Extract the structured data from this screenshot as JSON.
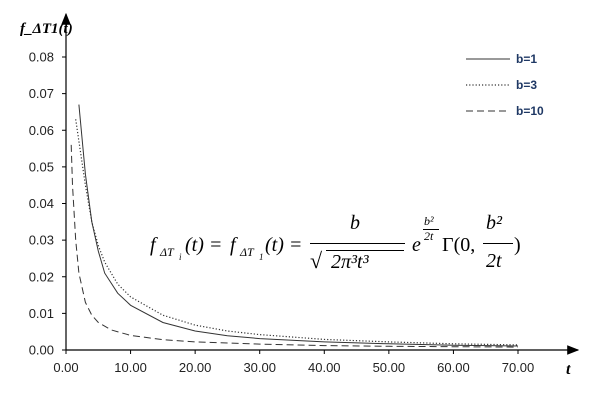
{
  "chart_data": {
    "type": "line",
    "xlabel": "t",
    "ylabel": "f_ΔT1(t)",
    "xlim": [
      0,
      72
    ],
    "ylim": [
      0,
      0.085
    ],
    "x_ticks": [
      "0.00",
      "10.00",
      "20.00",
      "30.00",
      "40.00",
      "50.00",
      "60.00",
      "70.00"
    ],
    "y_ticks": [
      "0.00",
      "0.01",
      "0.02",
      "0.03",
      "0.04",
      "0.05",
      "0.06",
      "0.07",
      "0.08"
    ],
    "legend_placement": "top-right",
    "grid": false,
    "series": [
      {
        "name": "b=1",
        "style": "solid",
        "points": [
          [
            2,
            0.067
          ],
          [
            3,
            0.048
          ],
          [
            4,
            0.035
          ],
          [
            5,
            0.027
          ],
          [
            6,
            0.021
          ],
          [
            8,
            0.0155
          ],
          [
            10,
            0.0122
          ],
          [
            15,
            0.0075
          ],
          [
            20,
            0.0052
          ],
          [
            25,
            0.0039
          ],
          [
            30,
            0.0031
          ],
          [
            40,
            0.0022
          ],
          [
            50,
            0.0017
          ],
          [
            60,
            0.0013
          ],
          [
            70,
            0.0011
          ]
        ]
      },
      {
        "name": "b=3",
        "style": "dotted",
        "points": [
          [
            1.5,
            0.063
          ],
          [
            2,
            0.057
          ],
          [
            3,
            0.045
          ],
          [
            4,
            0.035
          ],
          [
            5,
            0.0285
          ],
          [
            6,
            0.024
          ],
          [
            8,
            0.018
          ],
          [
            10,
            0.0145
          ],
          [
            15,
            0.0095
          ],
          [
            20,
            0.0068
          ],
          [
            25,
            0.0052
          ],
          [
            30,
            0.0042
          ],
          [
            40,
            0.0029
          ],
          [
            50,
            0.0022
          ],
          [
            60,
            0.0017
          ],
          [
            70,
            0.0014
          ]
        ]
      },
      {
        "name": "b=10",
        "style": "dashed",
        "points": [
          [
            0.8,
            0.056
          ],
          [
            1,
            0.045
          ],
          [
            1.5,
            0.03
          ],
          [
            2,
            0.021
          ],
          [
            3,
            0.013
          ],
          [
            4,
            0.0095
          ],
          [
            5,
            0.0075
          ],
          [
            7,
            0.0055
          ],
          [
            10,
            0.004
          ],
          [
            15,
            0.0028
          ],
          [
            20,
            0.0022
          ],
          [
            30,
            0.0016
          ],
          [
            40,
            0.0012
          ],
          [
            50,
            0.001
          ],
          [
            60,
            0.0009
          ],
          [
            70,
            0.0008
          ]
        ]
      }
    ]
  },
  "formula": {
    "lhs1": "f",
    "sub1": "ΔT",
    "sub1_sub": "i",
    "open1": "(t) = ",
    "lhs2": "f",
    "sub2": "ΔT",
    "sub2_sub": "1",
    "open2": "(t) = ",
    "numerator": "b",
    "denominator": "2π³t³",
    "exp_base": "e",
    "exp_num": "b²",
    "exp_den": "2t",
    "gamma": "Γ(0, ",
    "frac_num": "b²",
    "frac_den": "2t",
    "close": ")"
  }
}
